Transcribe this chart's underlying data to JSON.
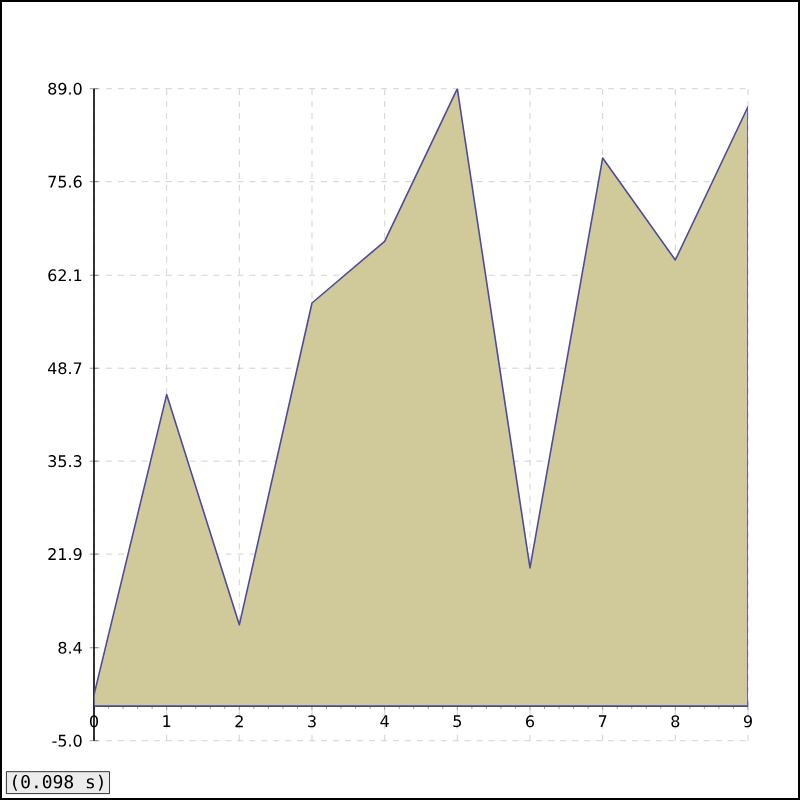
{
  "chart_data": {
    "type": "area",
    "x": [
      0,
      1,
      2,
      3,
      4,
      5,
      6,
      7,
      8,
      9
    ],
    "series": [
      {
        "color": "#d0ca9a",
        "values": [
          1.6,
          44.9,
          11.7,
          58.1,
          67.0,
          89.0,
          19.9,
          79.0,
          64.3,
          86.4
        ]
      }
    ],
    "xlim": [
      0,
      9
    ],
    "ylim": [
      -5,
      89
    ],
    "xticks": [
      0,
      1,
      2,
      3,
      4,
      5,
      6,
      7,
      8,
      9
    ],
    "yticks": [
      {
        "value": -5,
        "label": "-5.0"
      },
      8.4,
      21.9,
      35.3,
      48.7,
      62.1,
      {
        "value": 75.6,
        "label": "75.6"
      },
      {
        "value": 89,
        "label": "89.0"
      }
    ],
    "grid": true,
    "marker": "none",
    "line_style": "solid",
    "annotations": [
      "(0.098 s)"
    ]
  }
}
